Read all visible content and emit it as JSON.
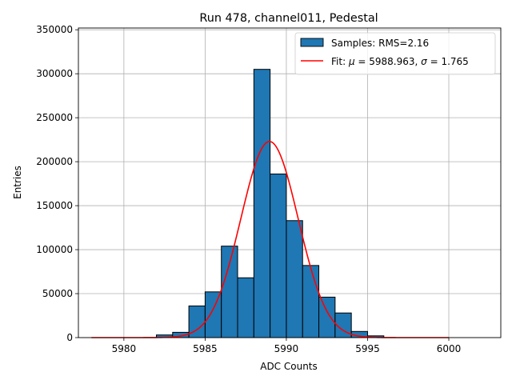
{
  "chart_data": {
    "type": "bar",
    "title": "Run 478, channel011, Pedestal",
    "xlabel": "ADC Counts",
    "ylabel": "Entries",
    "xlim": [
      5977.2,
      6003.2
    ],
    "ylim": [
      0,
      352000
    ],
    "grid": true,
    "legend_position": "top-right",
    "x_ticks": [
      5980,
      5985,
      5990,
      5995,
      6000
    ],
    "y_ticks": [
      0,
      50000,
      100000,
      150000,
      200000,
      250000,
      300000,
      350000
    ],
    "bin_width": 1,
    "bins": [
      {
        "left": 5982,
        "value": 3000
      },
      {
        "left": 5983,
        "value": 6000
      },
      {
        "left": 5984,
        "value": 36000
      },
      {
        "left": 5985,
        "value": 52000
      },
      {
        "left": 5986,
        "value": 104000
      },
      {
        "left": 5987,
        "value": 68000
      },
      {
        "left": 5988,
        "value": 305000
      },
      {
        "left": 5989,
        "value": 186000
      },
      {
        "left": 5990,
        "value": 133000
      },
      {
        "left": 5991,
        "value": 82000
      },
      {
        "left": 5992,
        "value": 46000
      },
      {
        "left": 5993,
        "value": 28000
      },
      {
        "left": 5994,
        "value": 7000
      },
      {
        "left": 5995,
        "value": 2000
      }
    ],
    "fit": {
      "mu": 5988.963,
      "sigma": 1.765,
      "amplitude": 223000,
      "x_range": [
        5978,
        6000
      ]
    },
    "legend": {
      "samples_label": "Samples: RMS=2.16",
      "fit_prefix": "Fit: ",
      "fit_mu_symbol": "μ",
      "fit_mu_text": " = 5988.963, ",
      "fit_sigma_symbol": "σ",
      "fit_sigma_text": " = 1.765"
    },
    "colors": {
      "bar_fill": "#1f77b4",
      "bar_edge": "#000000",
      "fit_line": "#ff0000",
      "grid": "#b0b0b0"
    }
  }
}
